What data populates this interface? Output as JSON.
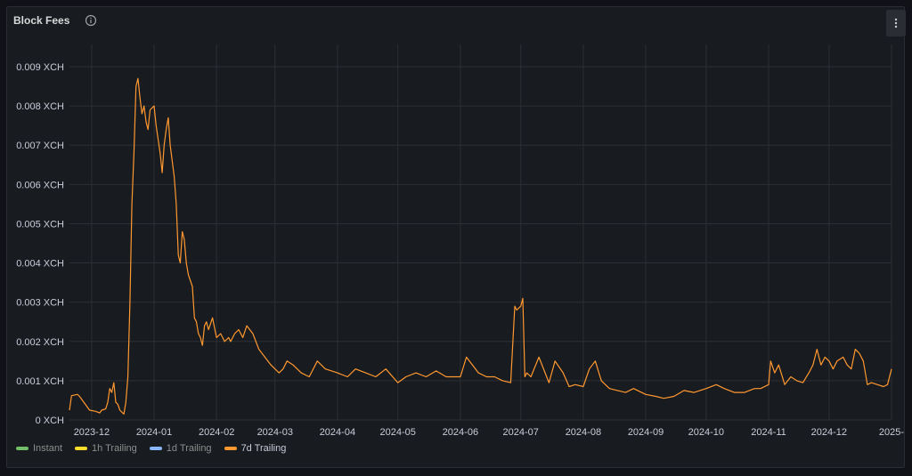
{
  "panel": {
    "title": "Block Fees",
    "info_icon": "info-icon",
    "menu_icon": "vertical-ellipsis-icon"
  },
  "legend": [
    {
      "label": "Instant",
      "color": "#73bf69",
      "active": false
    },
    {
      "label": "1h Trailing",
      "color": "#fade2a",
      "active": false
    },
    {
      "label": "1d Trailing",
      "color": "#8ab8ff",
      "active": false
    },
    {
      "label": "7d Trailing",
      "color": "#ff9830",
      "active": true
    }
  ],
  "chart_data": {
    "type": "line",
    "title": "Block Fees",
    "ylabel": "",
    "xlabel": "",
    "y_unit": "XCH",
    "ylim": [
      0,
      0.009
    ],
    "y_ticks": [
      "0 XCH",
      "0.001 XCH",
      "0.002 XCH",
      "0.003 XCH",
      "0.004 XCH",
      "0.005 XCH",
      "0.006 XCH",
      "0.007 XCH",
      "0.008 XCH",
      "0.009 XCH"
    ],
    "x_ticks": [
      "2023-12",
      "2024-01",
      "2024-02",
      "2024-03",
      "2024-04",
      "2024-05",
      "2024-06",
      "2024-07",
      "2024-08",
      "2024-09",
      "2024-10",
      "2024-11",
      "2024-12",
      "2025-"
    ],
    "xlim": [
      "2023-11-20",
      "2025-01-01"
    ],
    "grid": true,
    "legend_position": "bottom-left",
    "series": [
      {
        "name": "7d Trailing",
        "color": "#ff9830",
        "x": [
          "2023-11-20",
          "2023-11-21",
          "2023-11-24",
          "2023-11-25",
          "2023-11-30",
          "2023-12-03",
          "2023-12-05",
          "2023-12-06",
          "2023-12-08",
          "2023-12-09",
          "2023-12-10",
          "2023-12-11",
          "2023-12-12",
          "2023-12-13",
          "2023-12-14",
          "2023-12-15",
          "2023-12-17",
          "2023-12-18",
          "2023-12-19",
          "2023-12-20",
          "2023-12-21",
          "2023-12-22",
          "2023-12-23",
          "2023-12-24",
          "2023-12-25",
          "2023-12-26",
          "2023-12-27",
          "2023-12-28",
          "2023-12-29",
          "2023-12-30",
          "2024-01-01",
          "2024-01-02",
          "2024-01-04",
          "2024-01-05",
          "2024-01-06",
          "2024-01-07",
          "2024-01-08",
          "2024-01-09",
          "2024-01-11",
          "2024-01-12",
          "2024-01-13",
          "2024-01-14",
          "2024-01-15",
          "2024-01-16",
          "2024-01-17",
          "2024-01-18",
          "2024-01-20",
          "2024-01-21",
          "2024-01-22",
          "2024-01-23",
          "2024-01-24",
          "2024-01-25",
          "2024-01-26",
          "2024-01-27",
          "2024-01-28",
          "2024-01-30",
          "2024-02-01",
          "2024-02-03",
          "2024-02-05",
          "2024-02-07",
          "2024-02-08",
          "2024-02-10",
          "2024-02-12",
          "2024-02-14",
          "2024-02-16",
          "2024-02-19",
          "2024-02-22",
          "2024-02-25",
          "2024-02-28",
          "2024-03-01",
          "2024-03-03",
          "2024-03-05",
          "2024-03-07",
          "2024-03-10",
          "2024-03-14",
          "2024-03-18",
          "2024-03-22",
          "2024-03-26",
          "2024-04-01",
          "2024-04-06",
          "2024-04-10",
          "2024-04-15",
          "2024-04-20",
          "2024-04-25",
          "2024-05-01",
          "2024-05-05",
          "2024-05-10",
          "2024-05-15",
          "2024-05-20",
          "2024-05-25",
          "2024-06-01",
          "2024-06-04",
          "2024-06-07",
          "2024-06-10",
          "2024-06-14",
          "2024-06-18",
          "2024-06-22",
          "2024-06-26",
          "2024-06-28",
          "2024-06-29",
          "2024-07-01",
          "2024-07-02",
          "2024-07-03",
          "2024-07-04",
          "2024-07-06",
          "2024-07-10",
          "2024-07-15",
          "2024-07-18",
          "2024-07-22",
          "2024-07-25",
          "2024-07-28",
          "2024-08-01",
          "2024-08-04",
          "2024-08-07",
          "2024-08-10",
          "2024-08-14",
          "2024-08-18",
          "2024-08-22",
          "2024-08-26",
          "2024-09-01",
          "2024-09-06",
          "2024-09-10",
          "2024-09-15",
          "2024-09-20",
          "2024-09-25",
          "2024-10-01",
          "2024-10-06",
          "2024-10-10",
          "2024-10-15",
          "2024-10-20",
          "2024-10-25",
          "2024-10-28",
          "2024-11-01",
          "2024-11-02",
          "2024-11-04",
          "2024-11-06",
          "2024-11-09",
          "2024-11-12",
          "2024-11-15",
          "2024-11-18",
          "2024-11-21",
          "2024-11-23",
          "2024-11-25",
          "2024-11-27",
          "2024-11-29",
          "2024-12-01",
          "2024-12-03",
          "2024-12-05",
          "2024-12-08",
          "2024-12-10",
          "2024-12-12",
          "2024-12-14",
          "2024-12-16",
          "2024-12-18",
          "2024-12-20",
          "2024-12-22",
          "2024-12-25",
          "2024-12-28",
          "2024-12-30",
          "2025-01-01"
        ],
        "y": [
          0.00025,
          0.00062,
          0.00065,
          0.0006,
          0.00025,
          0.00022,
          0.00018,
          0.00025,
          0.00028,
          0.00045,
          0.0008,
          0.0007,
          0.00095,
          0.00045,
          0.0004,
          0.00025,
          0.00015,
          0.00045,
          0.0011,
          0.003,
          0.0055,
          0.0068,
          0.0085,
          0.0087,
          0.0082,
          0.0078,
          0.008,
          0.0076,
          0.0074,
          0.0079,
          0.008,
          0.0075,
          0.0068,
          0.0063,
          0.007,
          0.0074,
          0.0077,
          0.007,
          0.0062,
          0.0055,
          0.0042,
          0.004,
          0.0048,
          0.0046,
          0.004,
          0.0037,
          0.0034,
          0.0026,
          0.0025,
          0.0022,
          0.0021,
          0.0019,
          0.0024,
          0.0025,
          0.0023,
          0.0026,
          0.0021,
          0.0022,
          0.002,
          0.0021,
          0.002,
          0.0022,
          0.0023,
          0.0021,
          0.0024,
          0.0022,
          0.0018,
          0.0016,
          0.0014,
          0.0013,
          0.0012,
          0.0013,
          0.0015,
          0.0014,
          0.0012,
          0.0011,
          0.0015,
          0.0013,
          0.0012,
          0.0011,
          0.0013,
          0.0012,
          0.0011,
          0.0013,
          0.00095,
          0.0011,
          0.0012,
          0.0011,
          0.00125,
          0.0011,
          0.0011,
          0.0016,
          0.0014,
          0.0012,
          0.0011,
          0.0011,
          0.001,
          0.00095,
          0.0029,
          0.0028,
          0.0029,
          0.0031,
          0.0011,
          0.0012,
          0.0011,
          0.0016,
          0.00095,
          0.0015,
          0.0012,
          0.00085,
          0.0009,
          0.00085,
          0.0013,
          0.0015,
          0.001,
          0.0008,
          0.00075,
          0.0007,
          0.0008,
          0.00065,
          0.0006,
          0.00055,
          0.0006,
          0.00075,
          0.0007,
          0.0008,
          0.0009,
          0.0008,
          0.0007,
          0.0007,
          0.0008,
          0.0008,
          0.0009,
          0.0015,
          0.0012,
          0.0014,
          0.0009,
          0.0011,
          0.001,
          0.00095,
          0.0012,
          0.0014,
          0.0018,
          0.0014,
          0.0016,
          0.0015,
          0.0013,
          0.0015,
          0.0016,
          0.0014,
          0.0013,
          0.0018,
          0.0017,
          0.0015,
          0.0009,
          0.00095,
          0.0009,
          0.00085,
          0.0009,
          0.0013
        ]
      }
    ]
  }
}
